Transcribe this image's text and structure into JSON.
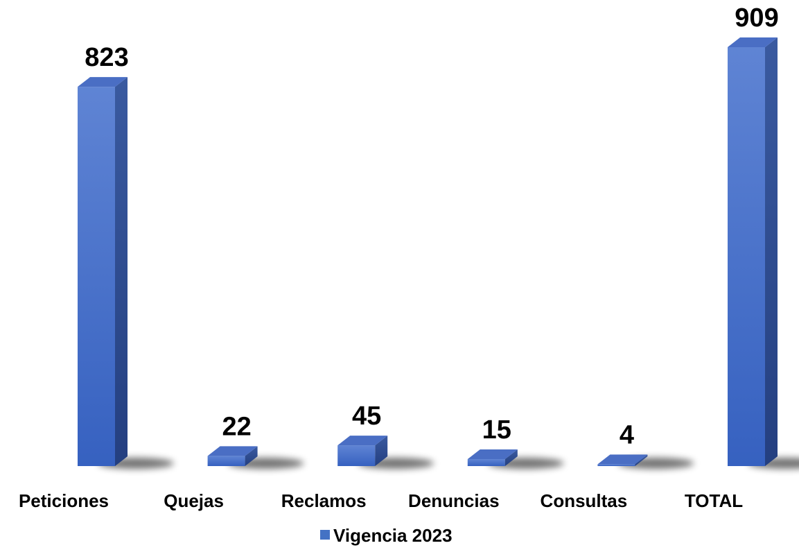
{
  "chart_data": {
    "type": "bar",
    "categories": [
      "Peticiones",
      "Quejas",
      "Reclamos",
      "Denuncias",
      "Consultas",
      "TOTAL"
    ],
    "series": [
      {
        "name": "Vigencia 2023",
        "color": "#4472c4",
        "values": [
          823,
          22,
          45,
          15,
          4,
          909
        ]
      }
    ]
  }
}
